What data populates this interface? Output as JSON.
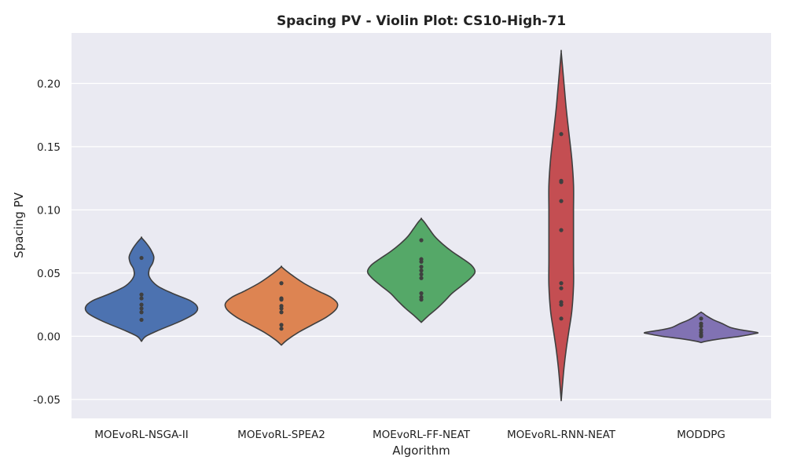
{
  "chart_data": {
    "type": "violin",
    "title": "Spacing PV - Violin Plot: CS10-High-71",
    "xlabel": "Algorithm",
    "ylabel": "Spacing PV",
    "ylim": [
      -0.065,
      0.24
    ],
    "yticks": [
      "-0.05",
      "0.00",
      "0.05",
      "0.10",
      "0.15",
      "0.20"
    ],
    "ytick_values": [
      -0.05,
      0.0,
      0.05,
      0.1,
      0.15,
      0.2
    ],
    "grid": true,
    "background": "#eaeaf2",
    "categories": [
      "MOEvoRL-NSGA-II",
      "MOEvoRL-SPEA2",
      "MOEvoRL-FF-NEAT",
      "MOEvoRL-RNN-NEAT",
      "MODDPG"
    ],
    "series": [
      {
        "color": "#4c72b0",
        "points": [
          0.062,
          0.033,
          0.03,
          0.025,
          0.022,
          0.019,
          0.013
        ],
        "profile": [
          [
            -0.004,
            0.0
          ],
          [
            0.0,
            0.08
          ],
          [
            0.005,
            0.32
          ],
          [
            0.012,
            0.7
          ],
          [
            0.018,
            0.95
          ],
          [
            0.023,
            1.0
          ],
          [
            0.028,
            0.88
          ],
          [
            0.034,
            0.55
          ],
          [
            0.04,
            0.28
          ],
          [
            0.047,
            0.14
          ],
          [
            0.053,
            0.14
          ],
          [
            0.058,
            0.2
          ],
          [
            0.063,
            0.22
          ],
          [
            0.069,
            0.16
          ],
          [
            0.074,
            0.08
          ],
          [
            0.078,
            0.0
          ]
        ]
      },
      {
        "color": "#dd8452",
        "points": [
          0.042,
          0.03,
          0.029,
          0.024,
          0.022,
          0.019,
          0.009,
          0.006
        ],
        "profile": [
          [
            -0.007,
            0.0
          ],
          [
            -0.003,
            0.1
          ],
          [
            0.003,
            0.3
          ],
          [
            0.009,
            0.55
          ],
          [
            0.015,
            0.8
          ],
          [
            0.021,
            0.97
          ],
          [
            0.026,
            1.0
          ],
          [
            0.031,
            0.88
          ],
          [
            0.036,
            0.65
          ],
          [
            0.042,
            0.4
          ],
          [
            0.048,
            0.2
          ],
          [
            0.052,
            0.08
          ],
          [
            0.055,
            0.0
          ]
        ]
      },
      {
        "color": "#55a868",
        "points": [
          0.076,
          0.061,
          0.059,
          0.055,
          0.052,
          0.049,
          0.046,
          0.034,
          0.031,
          0.029
        ],
        "profile": [
          [
            0.011,
            0.0
          ],
          [
            0.016,
            0.12
          ],
          [
            0.022,
            0.28
          ],
          [
            0.028,
            0.42
          ],
          [
            0.034,
            0.55
          ],
          [
            0.04,
            0.72
          ],
          [
            0.046,
            0.88
          ],
          [
            0.051,
            0.96
          ],
          [
            0.056,
            0.9
          ],
          [
            0.061,
            0.75
          ],
          [
            0.067,
            0.55
          ],
          [
            0.073,
            0.38
          ],
          [
            0.079,
            0.24
          ],
          [
            0.085,
            0.14
          ],
          [
            0.09,
            0.06
          ],
          [
            0.093,
            0.0
          ]
        ]
      },
      {
        "color": "#c44e52",
        "points": [
          0.16,
          0.123,
          0.122,
          0.107,
          0.084,
          0.042,
          0.038,
          0.027,
          0.025,
          0.014
        ],
        "profile": [
          [
            -0.051,
            0.0
          ],
          [
            -0.04,
            0.02
          ],
          [
            -0.025,
            0.05
          ],
          [
            -0.01,
            0.09
          ],
          [
            0.005,
            0.14
          ],
          [
            0.02,
            0.19
          ],
          [
            0.04,
            0.22
          ],
          [
            0.06,
            0.22
          ],
          [
            0.08,
            0.22
          ],
          [
            0.1,
            0.22
          ],
          [
            0.12,
            0.22
          ],
          [
            0.14,
            0.19
          ],
          [
            0.16,
            0.14
          ],
          [
            0.18,
            0.09
          ],
          [
            0.2,
            0.05
          ],
          [
            0.215,
            0.02
          ],
          [
            0.225,
            0.0
          ]
        ]
      },
      {
        "color": "#8172b3",
        "points": [
          0.014,
          0.01,
          0.008,
          0.005,
          0.003,
          0.001,
          0.0
        ],
        "profile": [
          [
            -0.005,
            0.0
          ],
          [
            -0.004,
            0.08
          ],
          [
            -0.002,
            0.35
          ],
          [
            0.0,
            0.7
          ],
          [
            0.002,
            0.95
          ],
          [
            0.003,
            1.0
          ],
          [
            0.005,
            0.72
          ],
          [
            0.007,
            0.52
          ],
          [
            0.01,
            0.38
          ],
          [
            0.013,
            0.22
          ],
          [
            0.016,
            0.1
          ],
          [
            0.018,
            0.04
          ],
          [
            0.019,
            0.0
          ]
        ]
      }
    ]
  }
}
